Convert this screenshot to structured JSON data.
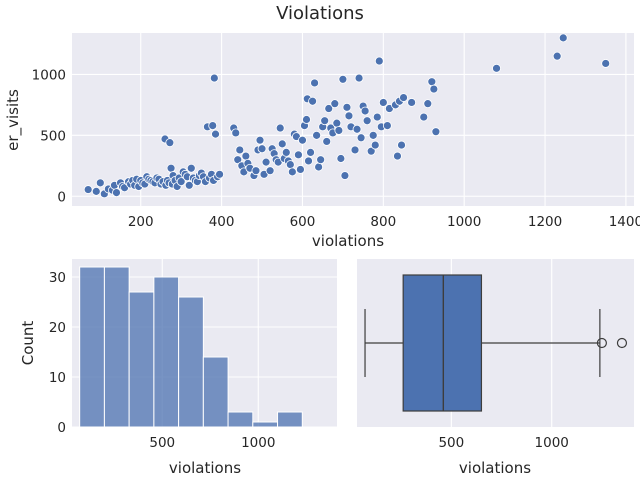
{
  "figure": {
    "title": "Violations"
  },
  "chart_data": [
    {
      "type": "scatter",
      "xlabel": "violations",
      "ylabel": "er_visits",
      "xlim": [
        30,
        1420
      ],
      "ylim": [
        -80,
        1340
      ],
      "xticks": [
        200,
        400,
        600,
        800,
        1000,
        1200,
        1400
      ],
      "yticks": [
        0,
        500,
        1000
      ],
      "color": "#4c72b0",
      "points": [
        [
          70,
          55
        ],
        [
          90,
          40
        ],
        [
          100,
          110
        ],
        [
          110,
          20
        ],
        [
          120,
          60
        ],
        [
          130,
          50
        ],
        [
          135,
          90
        ],
        [
          140,
          30
        ],
        [
          150,
          110
        ],
        [
          155,
          80
        ],
        [
          160,
          70
        ],
        [
          170,
          120
        ],
        [
          175,
          100
        ],
        [
          180,
          130
        ],
        [
          185,
          90
        ],
        [
          190,
          140
        ],
        [
          195,
          80
        ],
        [
          200,
          130
        ],
        [
          205,
          110
        ],
        [
          210,
          100
        ],
        [
          215,
          160
        ],
        [
          220,
          140
        ],
        [
          225,
          130
        ],
        [
          230,
          120
        ],
        [
          235,
          110
        ],
        [
          240,
          150
        ],
        [
          245,
          140
        ],
        [
          250,
          100
        ],
        [
          255,
          120
        ],
        [
          260,
          470
        ],
        [
          262,
          90
        ],
        [
          266,
          130
        ],
        [
          270,
          110
        ],
        [
          272,
          440
        ],
        [
          275,
          230
        ],
        [
          278,
          100
        ],
        [
          280,
          170
        ],
        [
          285,
          130
        ],
        [
          290,
          80
        ],
        [
          295,
          150
        ],
        [
          300,
          120
        ],
        [
          305,
          200
        ],
        [
          310,
          180
        ],
        [
          315,
          160
        ],
        [
          320,
          90
        ],
        [
          325,
          230
        ],
        [
          330,
          150
        ],
        [
          335,
          130
        ],
        [
          340,
          120
        ],
        [
          345,
          170
        ],
        [
          350,
          190
        ],
        [
          355,
          160
        ],
        [
          360,
          120
        ],
        [
          365,
          570
        ],
        [
          370,
          150
        ],
        [
          375,
          180
        ],
        [
          378,
          580
        ],
        [
          380,
          130
        ],
        [
          382,
          970
        ],
        [
          385,
          510
        ],
        [
          390,
          160
        ],
        [
          395,
          180
        ],
        [
          430,
          560
        ],
        [
          435,
          520
        ],
        [
          440,
          300
        ],
        [
          445,
          380
        ],
        [
          450,
          250
        ],
        [
          455,
          200
        ],
        [
          460,
          330
        ],
        [
          465,
          270
        ],
        [
          470,
          230
        ],
        [
          480,
          170
        ],
        [
          485,
          210
        ],
        [
          490,
          380
        ],
        [
          495,
          460
        ],
        [
          500,
          390
        ],
        [
          505,
          180
        ],
        [
          510,
          280
        ],
        [
          520,
          210
        ],
        [
          525,
          390
        ],
        [
          530,
          350
        ],
        [
          535,
          300
        ],
        [
          540,
          280
        ],
        [
          545,
          560
        ],
        [
          550,
          430
        ],
        [
          555,
          310
        ],
        [
          560,
          360
        ],
        [
          565,
          290
        ],
        [
          570,
          260
        ],
        [
          575,
          200
        ],
        [
          580,
          510
        ],
        [
          585,
          490
        ],
        [
          590,
          340
        ],
        [
          595,
          220
        ],
        [
          600,
          460
        ],
        [
          605,
          580
        ],
        [
          610,
          630
        ],
        [
          612,
          800
        ],
        [
          615,
          290
        ],
        [
          620,
          360
        ],
        [
          625,
          780
        ],
        [
          630,
          930
        ],
        [
          635,
          500
        ],
        [
          640,
          240
        ],
        [
          645,
          300
        ],
        [
          650,
          570
        ],
        [
          655,
          620
        ],
        [
          660,
          450
        ],
        [
          665,
          720
        ],
        [
          670,
          560
        ],
        [
          675,
          520
        ],
        [
          680,
          760
        ],
        [
          685,
          600
        ],
        [
          690,
          540
        ],
        [
          695,
          310
        ],
        [
          700,
          960
        ],
        [
          705,
          170
        ],
        [
          710,
          730
        ],
        [
          715,
          660
        ],
        [
          720,
          570
        ],
        [
          730,
          380
        ],
        [
          735,
          550
        ],
        [
          740,
          970
        ],
        [
          745,
          480
        ],
        [
          750,
          740
        ],
        [
          755,
          700
        ],
        [
          760,
          620
        ],
        [
          770,
          370
        ],
        [
          775,
          500
        ],
        [
          780,
          420
        ],
        [
          785,
          650
        ],
        [
          790,
          1110
        ],
        [
          795,
          570
        ],
        [
          800,
          770
        ],
        [
          810,
          580
        ],
        [
          815,
          720
        ],
        [
          830,
          750
        ],
        [
          835,
          330
        ],
        [
          840,
          780
        ],
        [
          845,
          420
        ],
        [
          850,
          810
        ],
        [
          870,
          770
        ],
        [
          900,
          650
        ],
        [
          910,
          760
        ],
        [
          920,
          940
        ],
        [
          925,
          880
        ],
        [
          930,
          530
        ],
        [
          1080,
          1050
        ],
        [
          1230,
          1150
        ],
        [
          1245,
          1300
        ],
        [
          1350,
          1090
        ]
      ]
    },
    {
      "type": "bar",
      "subtype": "histogram",
      "xlabel": "violations",
      "ylabel": "Count",
      "xlim": [
        30,
        1410
      ],
      "ylim": [
        0,
        33.6
      ],
      "xticks": [
        500,
        1000
      ],
      "yticks": [
        0,
        10,
        20,
        30
      ],
      "color": "#4c72b0",
      "bin_start": 70,
      "bin_width": 128.8,
      "values": [
        32,
        32,
        27,
        30,
        26,
        14,
        3,
        1,
        3
      ]
    },
    {
      "type": "box",
      "xlabel": "violations",
      "xlim": [
        30,
        1410
      ],
      "xticks": [
        500,
        1000
      ],
      "color": "#4c72b0",
      "whisker_low": 70,
      "q1": 260,
      "median": 460,
      "q3": 650,
      "whisker_high": 1240,
      "outliers": [
        1250,
        1350
      ]
    }
  ]
}
